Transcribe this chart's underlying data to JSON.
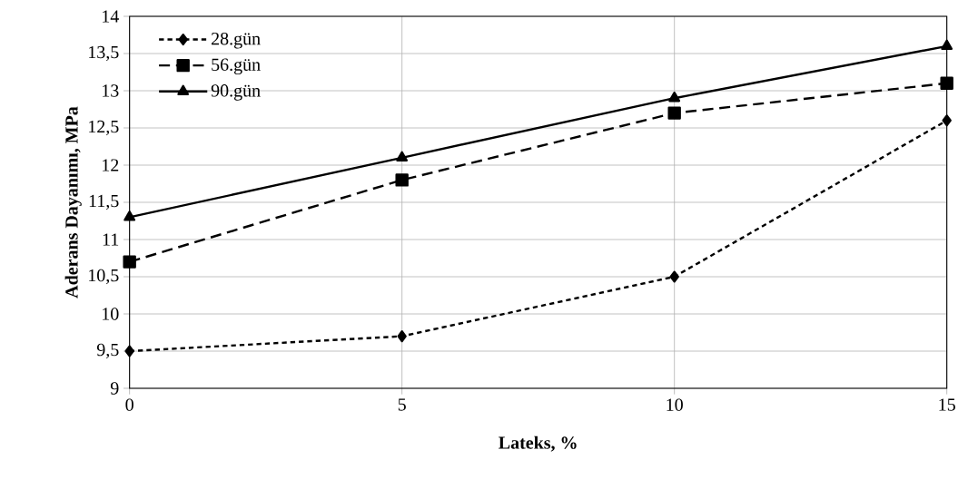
{
  "chart_data": {
    "type": "line",
    "xlabel": "Lateks, %",
    "ylabel": "Aderans Dayanımı, MPa",
    "x": [
      0,
      5,
      10,
      15
    ],
    "series": [
      {
        "name": "28.gün",
        "color": "#000000",
        "values": [
          9.5,
          9.7,
          10.5,
          12.6
        ],
        "marker": "diamond",
        "line_style": "dotted"
      },
      {
        "name": "56.gün",
        "color": "#000000",
        "values": [
          10.7,
          11.8,
          12.7,
          13.1
        ],
        "marker": "square",
        "line_style": "dashed"
      },
      {
        "name": "90.gün",
        "color": "#000000",
        "values": [
          11.3,
          12.1,
          12.9,
          13.6
        ],
        "marker": "triangle",
        "line_style": "solid"
      }
    ],
    "xlim": [
      0,
      15
    ],
    "xticks": [
      0,
      5,
      10,
      15
    ],
    "ylim": [
      9,
      14
    ],
    "yticks": [
      9,
      {
        "value": 9.5,
        "label": "9,5"
      },
      10,
      {
        "value": 10.5,
        "label": "10,5"
      },
      11,
      {
        "value": 11.5,
        "label": "11,5"
      },
      12,
      {
        "value": 12.5,
        "label": "12,5"
      },
      13,
      {
        "value": 13.5,
        "label": "13,5"
      },
      14
    ],
    "grid": true,
    "legend": "top left"
  }
}
